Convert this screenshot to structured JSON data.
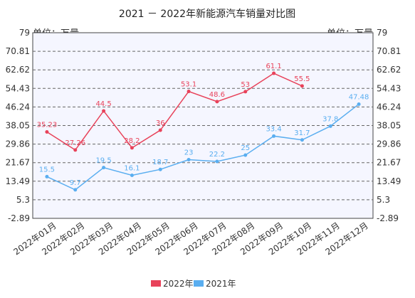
{
  "chart_data": {
    "type": "line",
    "title": "2021 － 2022年新能源汽车销量对比图",
    "unit_left": "单位：万量",
    "unit_right": "单位：万量",
    "categories": [
      "2022年01月",
      "2022年02月",
      "2022年03月",
      "2022年04月",
      "2022年05月",
      "2022年06月",
      "2022年07月",
      "2022年08月",
      "2022年09月",
      "2022年10月",
      "2022年11月",
      "2022年12月"
    ],
    "y_ticks": [
      "79",
      "70.81",
      "62.62",
      "54.43",
      "46.24",
      "38.05",
      "29.86",
      "21.67",
      "13.49",
      "5.3",
      "-2.89"
    ],
    "ylim": [
      -2.89,
      79
    ],
    "grid": true,
    "legend_position": "bottom",
    "series": [
      {
        "name": "2022年",
        "color": "#e8425a",
        "values": [
          35.23,
          27.26,
          44.5,
          28.2,
          36,
          53.1,
          48.6,
          53,
          61.1,
          55.5,
          null,
          null
        ],
        "labels": [
          "35.23",
          "27.26",
          "44.5",
          "28.2",
          "36",
          "53.1",
          "48.6",
          "53",
          "61.1",
          "55.5",
          "",
          ""
        ]
      },
      {
        "name": "2021年",
        "color": "#5aaef0",
        "values": [
          15.5,
          9.7,
          19.5,
          16.1,
          18.7,
          23,
          22.2,
          25,
          33.4,
          31.7,
          37.8,
          47.48
        ],
        "labels": [
          "15.5",
          "9.7",
          "19.5",
          "16.1",
          "18.7",
          "23",
          "22.2",
          "25",
          "33.4",
          "31.7",
          "37.8",
          "47.48"
        ]
      }
    ]
  }
}
